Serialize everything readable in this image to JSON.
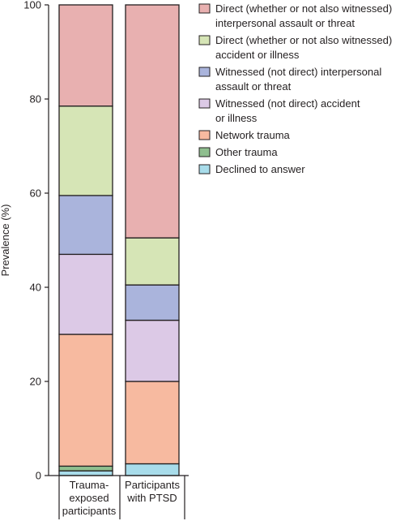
{
  "chart_data": {
    "type": "bar",
    "stacked": true,
    "ylabel": "Prevalence (%)",
    "ylim": [
      0,
      100
    ],
    "yticks": [
      0,
      20,
      40,
      60,
      80,
      100
    ],
    "categories": [
      [
        "Trauma-",
        "exposed",
        "participants"
      ],
      [
        "Participants",
        "with PTSD"
      ]
    ],
    "series": [
      {
        "name": "Declined to answer",
        "color": "#a8dcea",
        "values": [
          1.0,
          2.5
        ]
      },
      {
        "name": "Other trauma",
        "color": "#8fbf8f",
        "values": [
          1.0,
          0.0
        ]
      },
      {
        "name": "Network trauma",
        "color": "#f7baa0",
        "values": [
          28.0,
          17.5
        ]
      },
      {
        "name": "Witnessed (not direct) accident or illness",
        "color": "#dcc9e6",
        "values": [
          17.0,
          13.0
        ]
      },
      {
        "name": "Witnessed (not direct) interpersonal assault or threat",
        "color": "#aab4dc",
        "values": [
          12.5,
          7.5
        ]
      },
      {
        "name": "Direct (whether or not also witnessed) accident or illness",
        "color": "#d6e5b6",
        "values": [
          19.0,
          10.0
        ]
      },
      {
        "name": "Direct (whether or not also witnessed) interpersonal assault or threat",
        "color": "#e8b0b0",
        "values": [
          21.5,
          49.5
        ]
      }
    ],
    "legend": {
      "placement": "top-right",
      "order": [
        6,
        5,
        4,
        3,
        2,
        1,
        0
      ],
      "lines": [
        [
          "Direct (whether or not also witnessed)",
          "interpersonal assault or threat"
        ],
        [
          "Direct (whether or not also witnessed)",
          "accident or illness"
        ],
        [
          "Witnessed (not direct) interpersonal",
          "assault or threat"
        ],
        [
          "Witnessed (not direct) accident",
          "or illness"
        ],
        [
          "Network trauma"
        ],
        [
          "Other trauma"
        ],
        [
          "Declined to answer"
        ]
      ]
    },
    "grid": false
  }
}
